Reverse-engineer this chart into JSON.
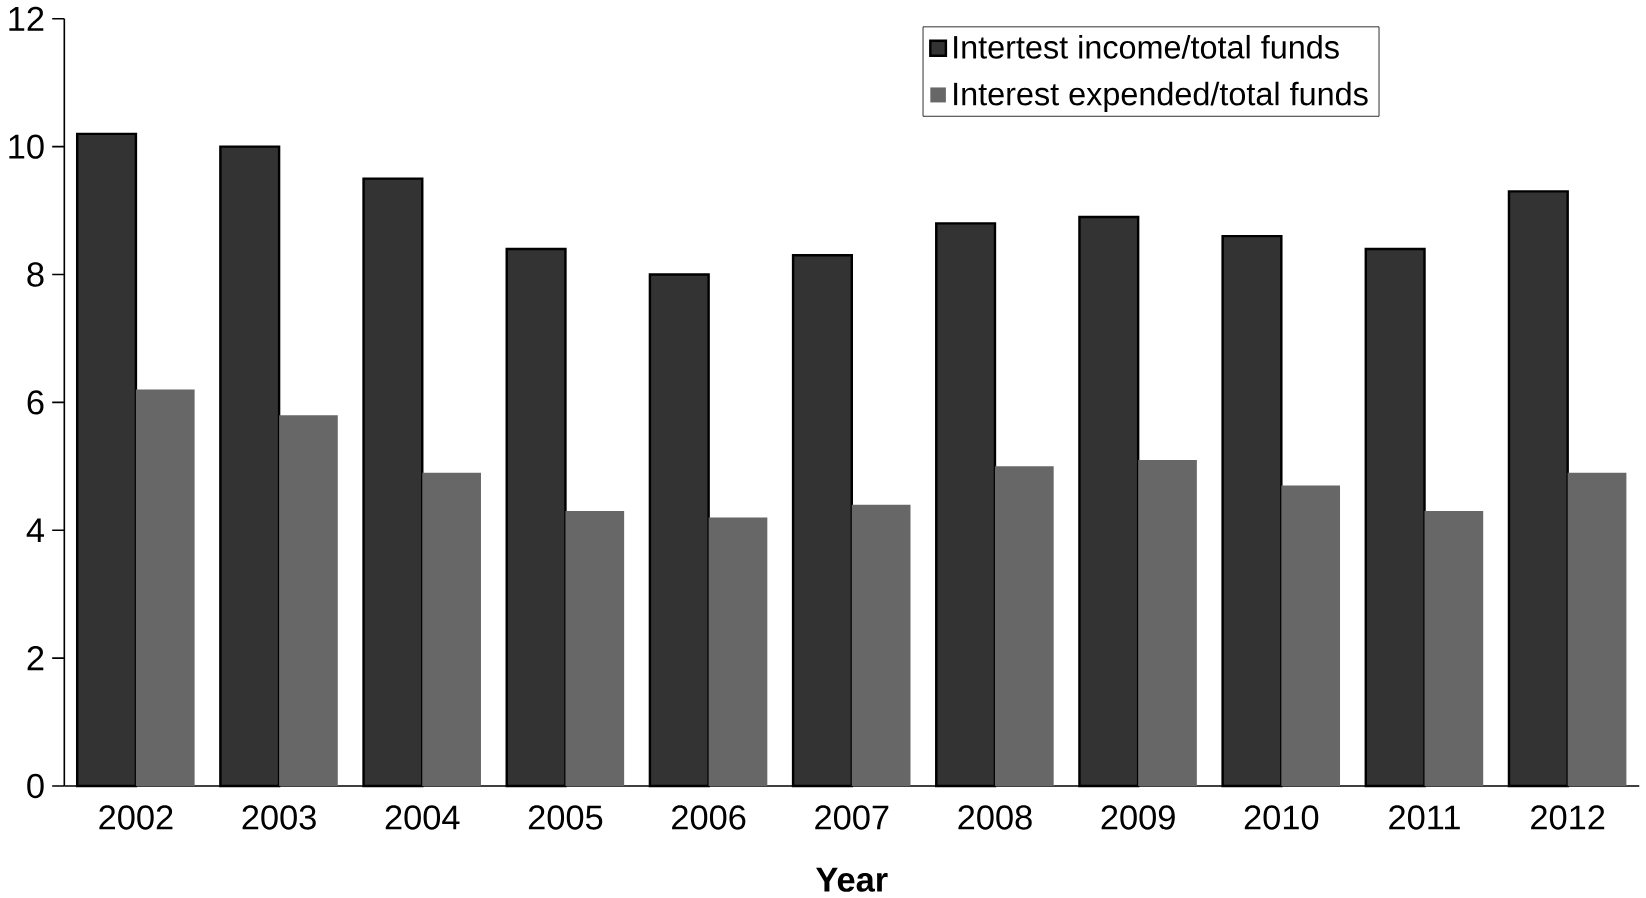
{
  "chart_data": {
    "type": "bar",
    "xlabel": "Year",
    "categories": [
      "2002",
      "2003",
      "2004",
      "2005",
      "2006",
      "2007",
      "2008",
      "2009",
      "2010",
      "2011",
      "2012"
    ],
    "series": [
      {
        "name": "Intertest income/total funds",
        "color": "#333333",
        "values": [
          10.2,
          10.0,
          9.5,
          8.4,
          8.0,
          8.3,
          8.8,
          8.9,
          8.6,
          8.4,
          9.3
        ]
      },
      {
        "name": "Interest expended/total funds",
        "color": "#676767",
        "values": [
          6.2,
          5.8,
          4.9,
          4.3,
          4.2,
          4.4,
          5.0,
          5.1,
          4.7,
          4.3,
          4.9
        ]
      }
    ],
    "ylim": [
      0,
      12
    ],
    "yticks": [
      0,
      2,
      4,
      6,
      8,
      10,
      12
    ],
    "grid": false,
    "legend": "top"
  }
}
